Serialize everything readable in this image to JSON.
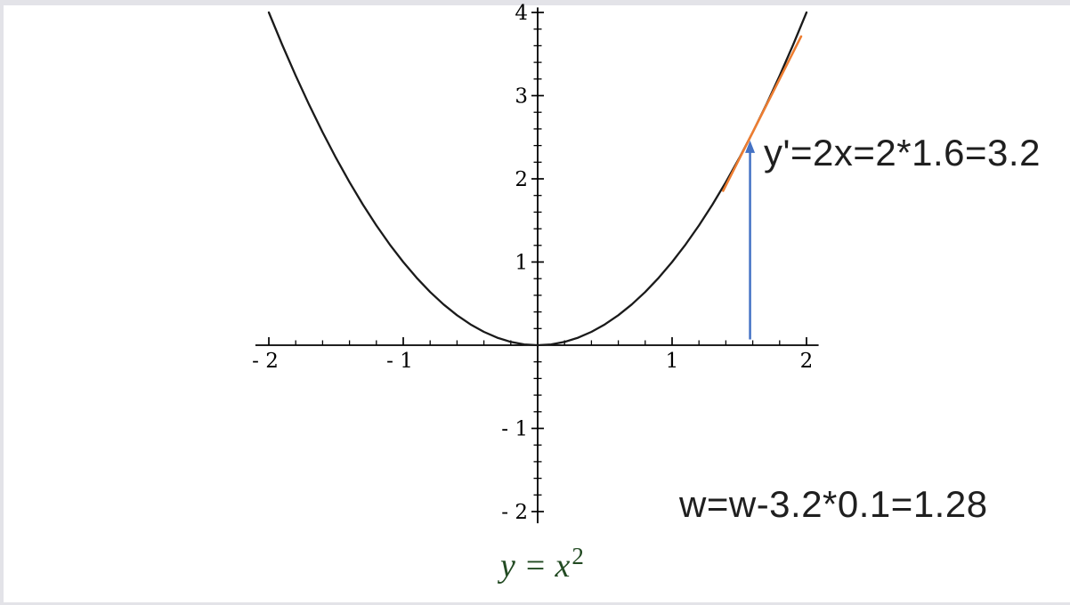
{
  "frame": {
    "border_color": "#e3e3e8",
    "canvas_color": "#ffffff"
  },
  "chart_data": {
    "type": "line",
    "title": "",
    "function": "y = x^2",
    "x_range": [
      -2.1,
      2.09
    ],
    "y_range": [
      -2.14,
      4.06
    ],
    "grid": false,
    "axis_color": "#000000",
    "tick_label_color": "#000000",
    "x_axis": {
      "ticks": [
        {
          "v": -2,
          "label": "- 2"
        },
        {
          "v": -1,
          "label": "- 1"
        },
        {
          "v": 1,
          "label": "1"
        },
        {
          "v": 2,
          "label": "2"
        }
      ],
      "minor_step": 0.2,
      "minor_range": [
        -2,
        2
      ]
    },
    "y_axis": {
      "ticks": [
        {
          "v": 4,
          "label": "4"
        },
        {
          "v": 3,
          "label": "3"
        },
        {
          "v": 2,
          "label": "2"
        },
        {
          "v": 1,
          "label": "1"
        },
        {
          "v": -1,
          "label": "- 1"
        },
        {
          "v": -2,
          "label": "- 2"
        }
      ],
      "minor_step": 0.2,
      "minor_range": [
        -2,
        4
      ]
    },
    "series": [
      {
        "name": "y=x^2",
        "color": "#1a1a1a",
        "points": [
          [
            -2.0,
            4.0
          ],
          [
            -1.9,
            3.61
          ],
          [
            -1.8,
            3.24
          ],
          [
            -1.7,
            2.89
          ],
          [
            -1.6,
            2.56
          ],
          [
            -1.5,
            2.25
          ],
          [
            -1.4,
            1.96
          ],
          [
            -1.3,
            1.69
          ],
          [
            -1.2,
            1.44
          ],
          [
            -1.1,
            1.21
          ],
          [
            -1.0,
            1.0
          ],
          [
            -0.9,
            0.81
          ],
          [
            -0.8,
            0.64
          ],
          [
            -0.7,
            0.49
          ],
          [
            -0.6,
            0.36
          ],
          [
            -0.5,
            0.25
          ],
          [
            -0.4,
            0.16
          ],
          [
            -0.3,
            0.09
          ],
          [
            -0.2,
            0.04
          ],
          [
            -0.1,
            0.01
          ],
          [
            0.0,
            0.0
          ],
          [
            0.1,
            0.01
          ],
          [
            0.2,
            0.04
          ],
          [
            0.3,
            0.09
          ],
          [
            0.4,
            0.16
          ],
          [
            0.5,
            0.25
          ],
          [
            0.6,
            0.36
          ],
          [
            0.7,
            0.49
          ],
          [
            0.8,
            0.64
          ],
          [
            0.9,
            0.81
          ],
          [
            1.0,
            1.0
          ],
          [
            1.1,
            1.21
          ],
          [
            1.2,
            1.44
          ],
          [
            1.3,
            1.69
          ],
          [
            1.4,
            1.96
          ],
          [
            1.5,
            2.25
          ],
          [
            1.6,
            2.56
          ],
          [
            1.7,
            2.89
          ],
          [
            1.8,
            3.24
          ],
          [
            1.9,
            3.61
          ],
          [
            2.0,
            4.0
          ]
        ]
      }
    ],
    "tangent_line": {
      "color": "#ed7d31",
      "at_x": 1.6,
      "at_y": 2.56,
      "slope": 3.2,
      "x_from": 1.38,
      "x_to": 1.96
    },
    "arrow_marker": {
      "color": "#4472c4",
      "x": 1.58,
      "y_from": 0.07,
      "y_to": 2.44,
      "direction": "up"
    }
  },
  "annotations": {
    "derivative_text": "y'=2x=2*1.6=3.2",
    "update_text": "w=w-3.2*0.1=1.28",
    "formula_base": "y = x",
    "formula_exponent": "2",
    "formula_color": "#234b23",
    "text_color": "#1f1f1f"
  }
}
